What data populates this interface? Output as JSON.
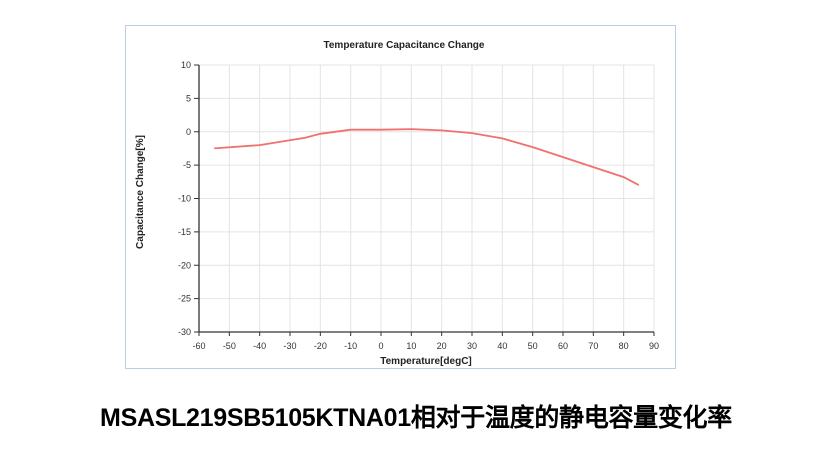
{
  "chart_data": {
    "type": "line",
    "title": "Temperature Capacitance Change",
    "xlabel": "Temperature[degC]",
    "ylabel": "Capacitance Change[%]",
    "xlim": [
      -60,
      90
    ],
    "ylim": [
      -30,
      10
    ],
    "xticks": [
      -60,
      -50,
      -40,
      -30,
      -20,
      -10,
      0,
      10,
      20,
      30,
      40,
      50,
      60,
      70,
      80,
      90
    ],
    "yticks": [
      10,
      5,
      0,
      -5,
      -10,
      -15,
      -20,
      -25,
      -30
    ],
    "grid": true,
    "series": [
      {
        "color": "#f07070",
        "x": [
          -55,
          -40,
          -25,
          -20,
          -10,
          0,
          10,
          20,
          30,
          40,
          50,
          60,
          70,
          80,
          85
        ],
        "y": [
          -2.5,
          -2.0,
          -0.9,
          -0.3,
          0.3,
          0.3,
          0.4,
          0.2,
          -0.2,
          -1.0,
          -2.3,
          -3.8,
          -5.3,
          -6.8,
          -8.0
        ]
      }
    ]
  },
  "caption": "MSASL219SB5105KTNA01相对于温度的静电容量变化率"
}
